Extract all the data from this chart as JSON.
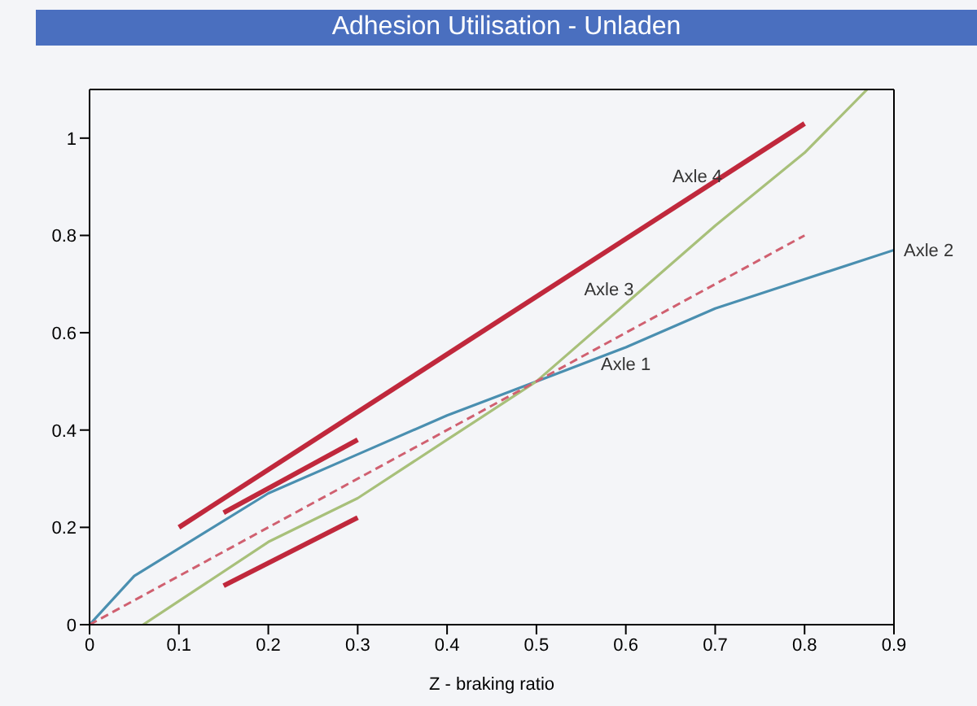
{
  "chart_data": {
    "type": "line",
    "title": "Adhesion Utilisation - Unladen",
    "xlabel": "Z - braking ratio",
    "xlim": [
      0,
      0.9
    ],
    "xticks": [
      0,
      0.1,
      0.2,
      0.3,
      0.4,
      0.5,
      0.6,
      0.7,
      0.8,
      0.9
    ],
    "ylim": [
      0,
      1.1
    ],
    "yticks": [
      0,
      0.2,
      0.4,
      0.6,
      0.8,
      1
    ],
    "marker": "none",
    "series": [
      {
        "color": "#4a8fb0",
        "x": [
          0,
          0.05,
          0.2,
          0.3,
          0.4,
          0.5,
          0.6,
          0.7,
          0.8,
          0.9
        ],
        "values": [
          0,
          0.1,
          0.27,
          0.35,
          0.43,
          0.5,
          0.57,
          0.65,
          0.71,
          0.77
        ]
      },
      {
        "color": "#a8c07a",
        "x": [
          0.06,
          0.2,
          0.3,
          0.4,
          0.5,
          0.6,
          0.7,
          0.8,
          0.87
        ],
        "values": [
          0,
          0.17,
          0.26,
          0.38,
          0.5,
          0.66,
          0.82,
          0.97,
          1.1
        ]
      },
      {
        "color": "#d06070",
        "line_style": "dashed",
        "x": [
          0,
          0.8
        ],
        "values": [
          0,
          0.8
        ]
      },
      {
        "color": "#c0283c",
        "x": [
          0.1,
          0.8
        ],
        "values": [
          0.2,
          1.03
        ]
      },
      {
        "color": "#c0283c",
        "x": [
          0.15,
          0.3
        ],
        "values": [
          0.23,
          0.38
        ]
      },
      {
        "color": "#c0283c",
        "x": [
          0.15,
          0.3
        ],
        "values": [
          0.08,
          0.22
        ]
      }
    ],
    "annotations": [
      {
        "text": "Axle 1",
        "x": 0.6,
        "y": 0.57
      },
      {
        "text": "Axle 2",
        "x": 0.9,
        "y": 0.77
      },
      {
        "text": "Axle 3",
        "x": 0.62,
        "y": 0.69
      },
      {
        "text": "Axle 4",
        "x": 0.68,
        "y": 0.89
      }
    ]
  }
}
